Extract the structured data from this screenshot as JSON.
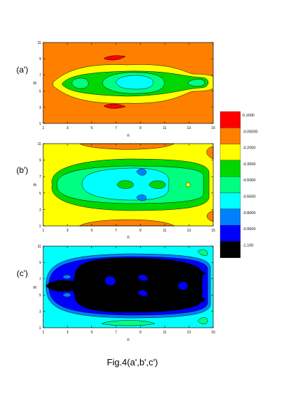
{
  "caption": "Fig.4(a',b',c')",
  "chart_data": [
    {
      "type": "contour",
      "panel_label": "(a')",
      "xlabel": "n",
      "ylabel": "m",
      "xlim": [
        1,
        15
      ],
      "ylim": [
        1,
        11
      ],
      "xticks": [
        "1",
        "3",
        "5",
        "7",
        "9",
        "11",
        "13",
        "15"
      ],
      "yticks": [
        "1",
        "3",
        "5",
        "7",
        "9",
        "11"
      ],
      "background_level": "-0.2000 to -0.05000",
      "regions": [
        {
          "name": "yellow band",
          "level": "-0.3500 to -0.2000",
          "center": [
            8.5,
            6
          ],
          "extent_n": [
            1.8,
            15
          ],
          "extent_m": [
            3.9,
            8.2
          ]
        },
        {
          "name": "green core",
          "level": "-0.5000 to -0.3500",
          "center": [
            8.5,
            6
          ],
          "extent_n": [
            2.8,
            14.8
          ],
          "extent_m": [
            4.8,
            7.3
          ]
        },
        {
          "name": "light green core",
          "level": "-0.6500 to -0.5000",
          "center": [
            8.6,
            6
          ],
          "extent_n": [
            5.5,
            12
          ],
          "extent_m": [
            4.9,
            7.0
          ]
        },
        {
          "name": "cyan center",
          "level": "-0.8000 to -0.6500",
          "center": [
            8.2,
            6
          ],
          "extent_n": [
            6.8,
            9.7
          ],
          "extent_m": [
            5.3,
            6.7
          ]
        },
        {
          "name": "red island upper",
          "level": "> -0.05000",
          "center": [
            7.6,
            9
          ]
        },
        {
          "name": "red island lower",
          "level": "> -0.05000",
          "center": [
            7.6,
            3
          ]
        }
      ]
    },
    {
      "type": "contour",
      "panel_label": "(b')",
      "xlabel": "n",
      "ylabel": "m",
      "xlim": [
        1,
        15
      ],
      "ylim": [
        1,
        11
      ],
      "xticks": [
        "1",
        "3",
        "5",
        "7",
        "9",
        "11",
        "13",
        "15"
      ],
      "yticks": [
        "1",
        "3",
        "5",
        "7",
        "9",
        "11"
      ],
      "background_level": "-0.3500 to -0.2000",
      "regions": [
        {
          "name": "green band",
          "level": "-0.5000 to -0.3500",
          "extent_n": [
            1.5,
            15
          ],
          "extent_m": [
            3,
            9
          ]
        },
        {
          "name": "light green band",
          "level": "-0.6500 to -0.5000",
          "extent_n": [
            2,
            14.6
          ],
          "extent_m": [
            3.6,
            8.4
          ]
        },
        {
          "name": "cyan core",
          "level": "-0.8000 to -0.6500",
          "extent_n": [
            4.6,
            11.6
          ],
          "extent_m": [
            4.3,
            7.8
          ]
        },
        {
          "name": "blue spots",
          "level": "-0.9500 to -0.8000",
          "centers": [
            [
              9.0,
              7.7
            ],
            [
              9.0,
              4.5
            ]
          ]
        },
        {
          "name": "orange edges",
          "level": "-0.2000 to -0.05000",
          "centers": [
            [
              8.5,
              10.9
            ],
            [
              8.5,
              1.1
            ],
            [
              15,
              9.5
            ],
            [
              15,
              2.5
            ]
          ]
        }
      ]
    },
    {
      "type": "contour",
      "panel_label": "(c')",
      "xlabel": "n",
      "ylabel": "m",
      "xlim": [
        1,
        15
      ],
      "ylim": [
        1,
        11
      ],
      "xticks": [
        "1",
        "3",
        "5",
        "7",
        "9",
        "11",
        "13",
        "15"
      ],
      "yticks": [
        "1",
        "3",
        "5",
        "7",
        "9",
        "11"
      ],
      "background_level": "-0.8000 to -0.6500",
      "regions": [
        {
          "name": "mid blue band",
          "level": "-0.9500 to -0.8000",
          "extent_n": [
            1.5,
            14.8
          ],
          "extent_m": [
            2.5,
            10
          ]
        },
        {
          "name": "dark blue band",
          "level": "-1.100 to -0.9500",
          "extent_n": [
            1.7,
            14.6
          ],
          "extent_m": [
            2.8,
            9.7
          ]
        },
        {
          "name": "black core",
          "level": "< -1.100",
          "extent_n": [
            4.3,
            14.3
          ],
          "extent_m": [
            3.3,
            9.5
          ]
        },
        {
          "name": "light green spots",
          "level": "-0.6500 to -0.5000",
          "centers": [
            [
              14.4,
              10
            ],
            [
              14.4,
              2
            ],
            [
              8.6,
              1.6
            ]
          ]
        }
      ]
    }
  ],
  "legend": {
    "entries": [
      {
        "label": "0.1000",
        "color": "#ff0000"
      },
      {
        "label": "-0.05000",
        "color": "#ff8000"
      },
      {
        "label": "-0.2000",
        "color": "#ffff00"
      },
      {
        "label": "-0.3500",
        "color": "#00d600"
      },
      {
        "label": "-0.5000",
        "color": "#00ff80"
      },
      {
        "label": "-0.6500",
        "color": "#00ffff"
      },
      {
        "label": "-0.8000",
        "color": "#0080ff"
      },
      {
        "label": "-0.9500",
        "color": "#0000ff"
      },
      {
        "label": "-1.100",
        "color": "#000000"
      }
    ]
  }
}
